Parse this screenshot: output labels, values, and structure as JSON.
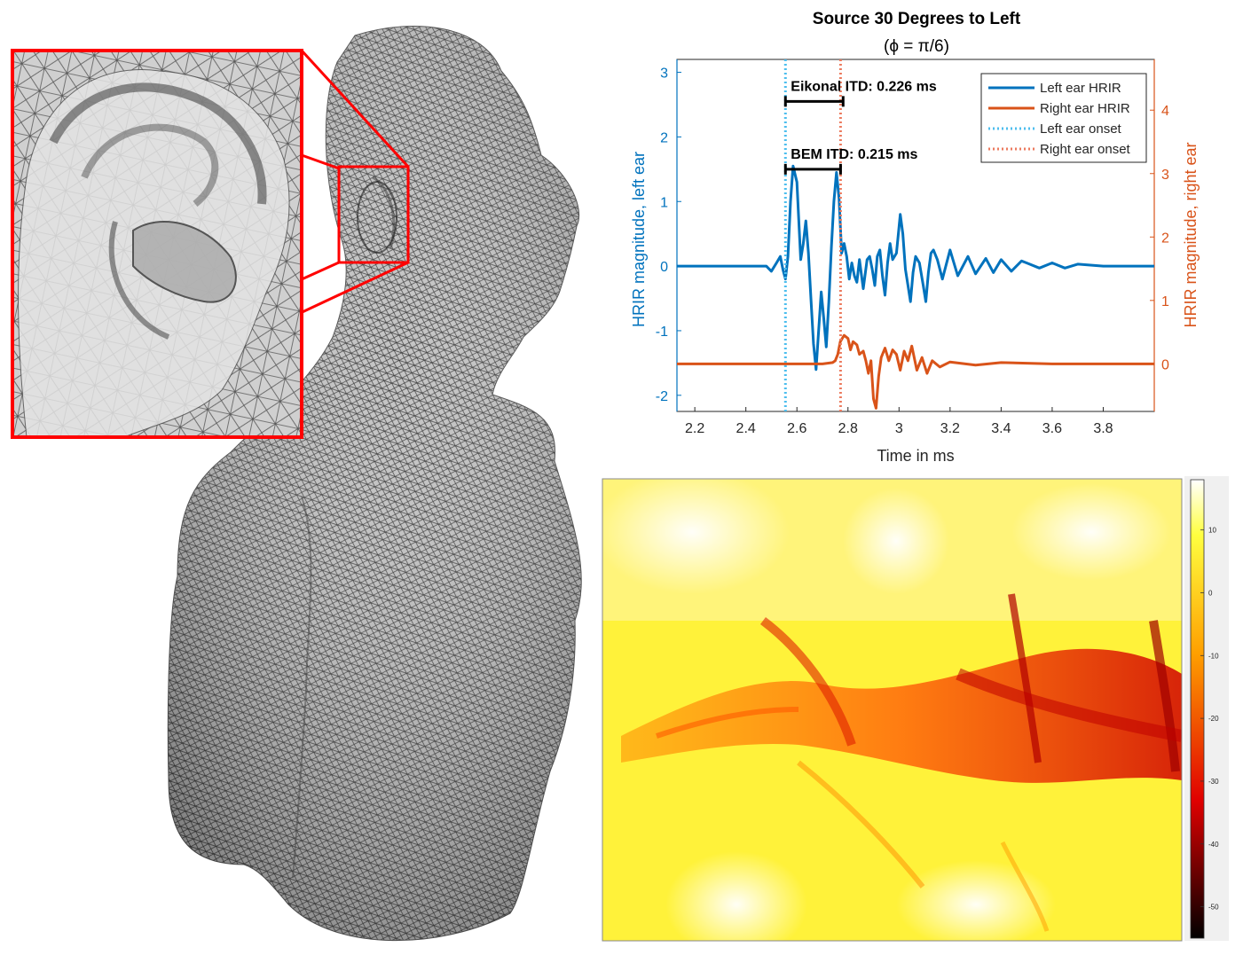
{
  "chart_data": [
    {
      "type": "line",
      "title": "Source 30 Degrees to Left",
      "subtitle": "(ϕ = π/6)",
      "xlabel": "Time in ms",
      "ylabel_left": "HRIR magnitude, left ear",
      "ylabel_right": "HRIR magnitude, right ear",
      "xlim": [
        2.13,
        4.0
      ],
      "ylim_left": [
        -2.25,
        3.2
      ],
      "ylim_right": [
        -0.75,
        4.8
      ],
      "x_ticks": [
        2.2,
        2.4,
        2.6,
        2.8,
        3.0,
        3.2,
        3.4,
        3.6,
        3.8
      ],
      "x_tick_labels": [
        "2.2",
        "2.4",
        "2.6",
        "2.8",
        "3",
        "3.2",
        "3.4",
        "3.6",
        "3.8"
      ],
      "y_left_ticks": [
        -2,
        -1,
        0,
        1,
        2,
        3
      ],
      "y_right_ticks": [
        0,
        1,
        2,
        3,
        4
      ],
      "legend_position": "top-right",
      "series": [
        {
          "name": "Left ear HRIR",
          "axis": "left",
          "color": "#0072BD",
          "style": "solid",
          "x": [
            2.13,
            2.2,
            2.3,
            2.4,
            2.48,
            2.5,
            2.52,
            2.535,
            2.545,
            2.555,
            2.565,
            2.575,
            2.585,
            2.6,
            2.615,
            2.625,
            2.635,
            2.645,
            2.655,
            2.665,
            2.675,
            2.685,
            2.695,
            2.705,
            2.715,
            2.725,
            2.735,
            2.745,
            2.755,
            2.765,
            2.775,
            2.785,
            2.795,
            2.805,
            2.815,
            2.825,
            2.835,
            2.845,
            2.86,
            2.875,
            2.885,
            2.895,
            2.905,
            2.915,
            2.925,
            2.935,
            2.945,
            2.955,
            2.965,
            2.975,
            2.99,
            3.005,
            3.015,
            3.025,
            3.035,
            3.045,
            3.055,
            3.065,
            3.08,
            3.095,
            3.105,
            3.115,
            3.125,
            3.135,
            3.15,
            3.17,
            3.2,
            3.23,
            3.27,
            3.3,
            3.34,
            3.37,
            3.4,
            3.44,
            3.48,
            3.5,
            3.55,
            3.6,
            3.65,
            3.7,
            3.8,
            3.9,
            4.0
          ],
          "y": [
            0,
            0,
            0,
            0,
            0,
            -0.08,
            0.05,
            0.15,
            -0.05,
            -0.2,
            0.15,
            1.0,
            1.55,
            1.3,
            0.1,
            0.35,
            0.7,
            0.2,
            -0.5,
            -1.2,
            -1.6,
            -1.0,
            -0.4,
            -0.8,
            -1.25,
            -0.55,
            0.3,
            1.0,
            1.45,
            1.05,
            0.2,
            0.35,
            0.15,
            -0.2,
            0.05,
            -0.15,
            -0.25,
            0.1,
            -0.35,
            0.1,
            0.15,
            -0.05,
            -0.3,
            0.15,
            0.25,
            -0.15,
            -0.45,
            0.05,
            0.35,
            0.1,
            0.2,
            0.8,
            0.5,
            -0.05,
            -0.3,
            -0.55,
            -0.1,
            0.15,
            0.05,
            -0.3,
            -0.55,
            -0.1,
            0.2,
            0.25,
            0.1,
            -0.2,
            0.25,
            -0.15,
            0.15,
            -0.12,
            0.12,
            -0.1,
            0.1,
            -0.08,
            0.08,
            0.05,
            -0.03,
            0.05,
            -0.03,
            0.03,
            0,
            0,
            0
          ]
        },
        {
          "name": "Right ear HRIR",
          "axis": "right",
          "color": "#D95319",
          "style": "solid",
          "x": [
            2.13,
            2.3,
            2.5,
            2.7,
            2.74,
            2.75,
            2.76,
            2.77,
            2.785,
            2.8,
            2.81,
            2.82,
            2.835,
            2.845,
            2.86,
            2.87,
            2.88,
            2.89,
            2.9,
            2.91,
            2.92,
            2.93,
            2.945,
            2.96,
            2.975,
            2.99,
            3.005,
            3.02,
            3.035,
            3.05,
            3.07,
            3.09,
            3.11,
            3.13,
            3.16,
            3.2,
            3.3,
            3.4,
            3.6,
            3.8,
            4.0
          ],
          "y": [
            0,
            0,
            0,
            0,
            0.02,
            0.05,
            0.15,
            0.35,
            0.45,
            0.4,
            0.22,
            0.35,
            0.3,
            0.15,
            0.2,
            0.05,
            -0.15,
            0.05,
            -0.55,
            -0.7,
            -0.2,
            0.1,
            0.25,
            0.05,
            0.22,
            0.15,
            -0.1,
            0.2,
            0.05,
            0.28,
            -0.1,
            0.1,
            -0.15,
            0.05,
            -0.05,
            0.03,
            -0.02,
            0.02,
            0,
            0,
            0
          ]
        },
        {
          "name": "Left ear onset",
          "axis": "left",
          "color": "#4DBEEE",
          "style": "dotted",
          "x": [
            2.555,
            2.555
          ],
          "y": [
            -2.25,
            3.2
          ]
        },
        {
          "name": "Right ear onset",
          "axis": "left",
          "color": "#EC7B5F",
          "style": "dotted",
          "x": [
            2.771,
            2.771
          ],
          "y": [
            -2.25,
            3.2
          ]
        }
      ],
      "annotations": [
        {
          "text": "Eikonal ITD: 0.226 ms",
          "x_start": 2.555,
          "x_end": 2.781,
          "y": 2.55
        },
        {
          "text": "BEM ITD: 0.215 ms",
          "x_start": 2.555,
          "x_end": 2.771,
          "y": 1.5
        }
      ]
    },
    {
      "type": "heatmap",
      "colormap": "hot",
      "colorbar_ticks": [
        10,
        0,
        -10,
        -20,
        -30,
        -40,
        -50
      ],
      "colorbar_range": [
        -55,
        18
      ]
    }
  ],
  "figure": {
    "mesh_color": "#bdbdbd",
    "highlight_color": "#ff0000"
  }
}
